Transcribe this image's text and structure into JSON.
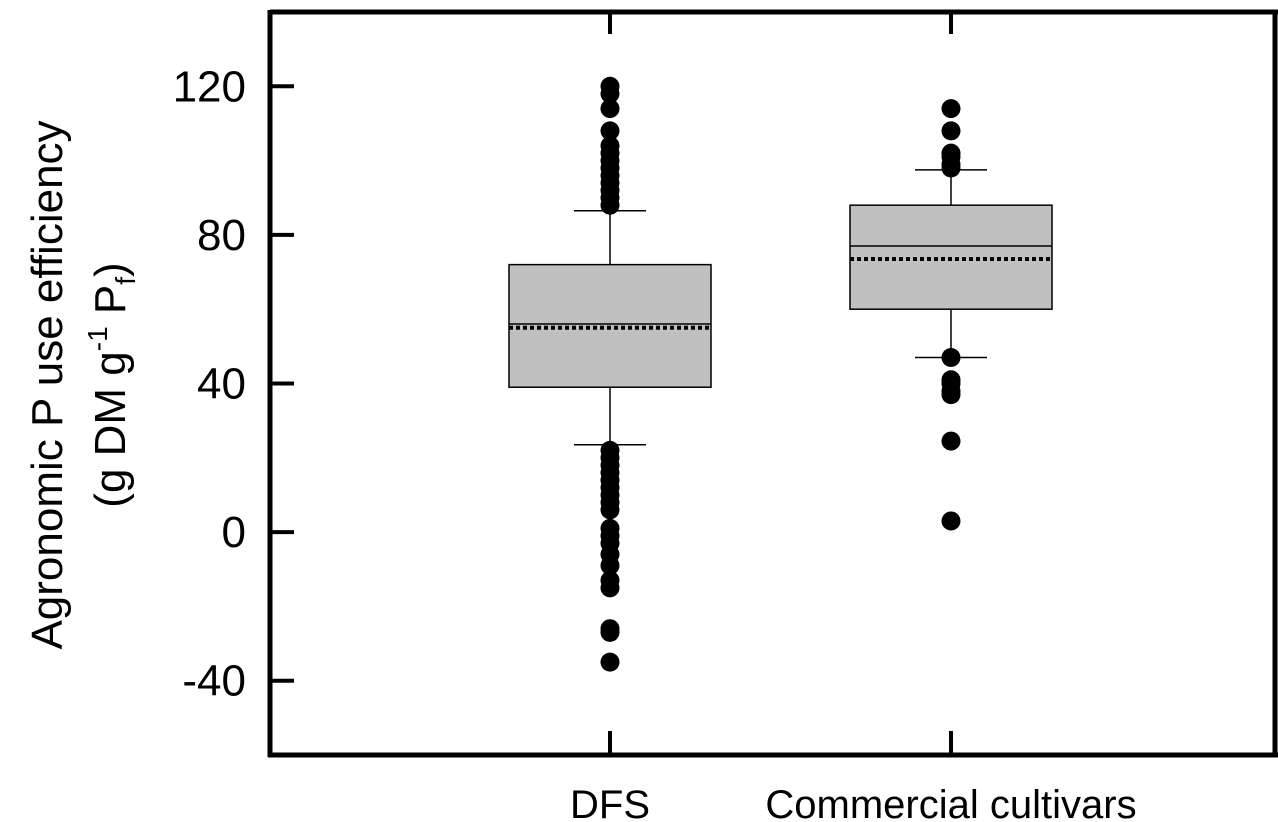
{
  "chart_data": {
    "type": "box",
    "ylabel_line1": "Agronomic P use efficiency",
    "ylabel_line2": {
      "pre": "(g DM g",
      "sup": "-1",
      "mid": " P",
      "sub": "f",
      "post": ")"
    },
    "ylim": [
      -60,
      140
    ],
    "yticks": [
      -40,
      0,
      40,
      80,
      120
    ],
    "grid": false,
    "categories": [
      "DFS",
      "Commercial cultivars"
    ],
    "boxes": [
      {
        "category": "DFS",
        "q1": 39,
        "median": 56,
        "mean": 55,
        "q3": 72,
        "whisker_low": 23.5,
        "whisker_high": 86.5,
        "outliers": [
          120,
          118,
          114,
          108,
          104,
          102,
          100,
          98,
          96,
          94,
          92,
          90,
          88,
          22,
          20,
          18,
          16,
          14,
          12,
          10,
          8,
          6,
          1,
          -1,
          -3,
          -6,
          -9,
          -13,
          -15,
          -26,
          -27,
          -35
        ]
      },
      {
        "category": "Commercial cultivars",
        "q1": 60,
        "median": 77,
        "mean": 73.5,
        "q3": 88,
        "whisker_low": 47,
        "whisker_high": 97.5,
        "outliers": [
          114,
          108,
          102,
          101,
          99,
          98,
          47,
          41,
          40,
          38,
          37,
          24.5,
          3
        ]
      }
    ]
  }
}
